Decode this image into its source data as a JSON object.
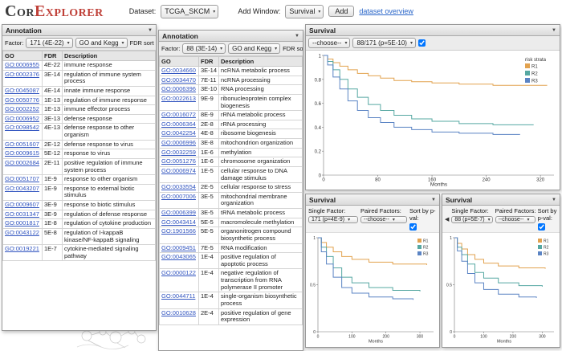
{
  "header": {
    "logo": {
      "cor": "Cor",
      "explorer": "Explorer"
    },
    "dataset_label": "Dataset:",
    "dataset_value": "TCGA_SKCM",
    "add_window_label": "Add Window:",
    "add_window_value": "Survival",
    "add_button_label": "Add",
    "overview_link_label": "dataset overview"
  },
  "annotation_left": {
    "title": "Annotation",
    "factor_label": "Factor:",
    "factor_value": "171 (4E-22)",
    "ontology_value": "GO and Kegg",
    "fdr_sort_label": "FDR sort",
    "fdr_sort_checked": true,
    "columns": [
      "GO",
      "FDR",
      "Description"
    ],
    "rows": [
      [
        "GO:0006955",
        "4E-22",
        "immune response"
      ],
      [
        "GO:0002376",
        "3E-14",
        "regulation of immune system process"
      ],
      [
        "GO:0045087",
        "4E-14",
        "innate immune response"
      ],
      [
        "GO:0050776",
        "1E-13",
        "regulation of immune response"
      ],
      [
        "GO:0002252",
        "1E-13",
        "immune effector process"
      ],
      [
        "GO:0006952",
        "3E-13",
        "defense response"
      ],
      [
        "GO:0098542",
        "4E-13",
        "defense response to other organism"
      ],
      [
        "GO:0051607",
        "2E-12",
        "defense response to virus"
      ],
      [
        "GO:0009615",
        "5E-12",
        "response to virus"
      ],
      [
        "GO:0002684",
        "2E-11",
        "positive regulation of immune system process"
      ],
      [
        "GO:0051707",
        "1E-9",
        "response to other organism"
      ],
      [
        "GO:0043207",
        "1E-9",
        "response to external biotic stimulus"
      ],
      [
        "GO:0009607",
        "3E-9",
        "response to biotic stimulus"
      ],
      [
        "GO:0031347",
        "3E-9",
        "regulation of defense response"
      ],
      [
        "GO:0001817",
        "1E-8",
        "regulation of cytokine production"
      ],
      [
        "GO:0043122",
        "5E-8",
        "regulation of I-kappaB kinase/NF-kappaB signaling"
      ],
      [
        "GO:0019221",
        "1E-7",
        "cytokine-mediated signaling pathway"
      ]
    ]
  },
  "annotation_mid": {
    "title": "Annotation",
    "factor_label": "Factor:",
    "factor_value": "88 (3E-14)",
    "ontology_value": "GO and Kegg",
    "fdr_sort_label": "FDR sort",
    "fdr_sort_checked": true,
    "columns": [
      "GO",
      "FDR",
      "Description"
    ],
    "rows": [
      [
        "GO:0034660",
        "3E-14",
        "ncRNA metabolic process"
      ],
      [
        "GO:0034470",
        "7E-11",
        "ncRNA processing"
      ],
      [
        "GO:0006396",
        "3E-10",
        "RNA processing"
      ],
      [
        "GO:0022613",
        "9E-9",
        "ribonucleoprotein complex biogenesis"
      ],
      [
        "GO:0016072",
        "8E-9",
        "rRNA metabolic process"
      ],
      [
        "GO:0006364",
        "2E-8",
        "rRNA processing"
      ],
      [
        "GO:0042254",
        "4E-8",
        "ribosome biogenesis"
      ],
      [
        "GO:0006996",
        "3E-8",
        "mitochondrion organization"
      ],
      [
        "GO:0032259",
        "1E-6",
        "methylation"
      ],
      [
        "GO:0051276",
        "1E-6",
        "chromosome organization"
      ],
      [
        "GO:0006974",
        "1E-5",
        "cellular response to DNA damage stimulus"
      ],
      [
        "GO:0033554",
        "2E-5",
        "cellular response to stress"
      ],
      [
        "GO:0007006",
        "3E-5",
        "mitochondrial membrane organization"
      ],
      [
        "GO:0006399",
        "3E-5",
        "tRNA metabolic process"
      ],
      [
        "GO:0043414",
        "5E-5",
        "macromolecule methylation"
      ],
      [
        "GO:1901566",
        "5E-5",
        "organonitrogen compound biosynthetic process"
      ],
      [
        "GO:0009451",
        "7E-5",
        "RNA modification"
      ],
      [
        "GO:0043065",
        "1E-4",
        "positive regulation of apoptotic process"
      ],
      [
        "GO:0000122",
        "1E-4",
        "negative regulation of transcription from RNA polymerase II promoter"
      ],
      [
        "GO:0044711",
        "1E-4",
        "single-organism biosynthetic process"
      ],
      [
        "GO:0010628",
        "2E-4",
        "positive regulation of gene expression"
      ]
    ]
  },
  "survival_main": {
    "title": "Survival",
    "single_value": "--choose--",
    "paired_value": "88/171 (p=5E-10)",
    "sort_checked": true
  },
  "survival_small_left": {
    "title": "Survival",
    "single_label": "Single Factor:",
    "single_value": "171 (p=4E-9)",
    "paired_label": "Paired Factors:",
    "paired_value": "--choose--",
    "sort_label": "Sort by p-val:",
    "sort_checked": true
  },
  "survival_small_right": {
    "title": "Survival",
    "single_label": "Single Factor:",
    "single_value": "88 (p=5E-7)",
    "paired_label": "Paired Factors:",
    "paired_value": "--choose--",
    "sort_label": "Sort by p-val:",
    "sort_checked": true
  },
  "chart_data": [
    {
      "id": "main",
      "type": "line",
      "title": "",
      "xlabel": "Months",
      "ylabel": "",
      "xlim": [
        0,
        340
      ],
      "ylim": [
        0,
        1
      ],
      "x_ticks": [
        0,
        80,
        160,
        240,
        320
      ],
      "y_ticks": [
        0,
        0.2,
        0.4,
        0.6,
        0.8,
        1
      ],
      "legend_title": "risk strata",
      "ml": 22,
      "fs": 6,
      "lw": 36,
      "series": [
        {
          "name": "R1",
          "color": "#e2a24f",
          "points": [
            [
              0,
              1
            ],
            [
              6,
              0.97
            ],
            [
              14,
              0.94
            ],
            [
              24,
              0.91
            ],
            [
              36,
              0.88
            ],
            [
              50,
              0.85
            ],
            [
              66,
              0.83
            ],
            [
              84,
              0.81
            ],
            [
              104,
              0.79
            ],
            [
              130,
              0.78
            ],
            [
              160,
              0.77
            ],
            [
              200,
              0.76
            ],
            [
              250,
              0.75
            ],
            [
              330,
              0.75
            ]
          ]
        },
        {
          "name": "R2",
          "color": "#56a8a2",
          "points": [
            [
              0,
              1
            ],
            [
              6,
              0.95
            ],
            [
              14,
              0.88
            ],
            [
              24,
              0.8
            ],
            [
              36,
              0.72
            ],
            [
              50,
              0.65
            ],
            [
              66,
              0.59
            ],
            [
              84,
              0.54
            ],
            [
              104,
              0.5
            ],
            [
              130,
              0.47
            ],
            [
              160,
              0.45
            ],
            [
              200,
              0.43
            ],
            [
              250,
              0.42
            ],
            [
              310,
              0.42
            ]
          ]
        },
        {
          "name": "R3",
          "color": "#5b84c4",
          "points": [
            [
              0,
              1
            ],
            [
              6,
              0.92
            ],
            [
              14,
              0.82
            ],
            [
              24,
              0.72
            ],
            [
              36,
              0.62
            ],
            [
              50,
              0.54
            ],
            [
              66,
              0.48
            ],
            [
              84,
              0.44
            ],
            [
              104,
              0.4
            ],
            [
              130,
              0.38
            ],
            [
              160,
              0.36
            ],
            [
              200,
              0.35
            ],
            [
              250,
              0.34
            ],
            [
              290,
              0.34
            ]
          ]
        }
      ]
    },
    {
      "id": "small_left",
      "type": "line",
      "xlabel": "Months",
      "xlim": [
        0,
        340
      ],
      "ylim": [
        0,
        1
      ],
      "x_ticks": [
        0,
        100,
        200,
        300
      ],
      "y_ticks": [
        0,
        0.5,
        1
      ],
      "ml": 15,
      "fs": 5,
      "lw": 20,
      "series": [
        {
          "name": "R1",
          "color": "#e2a24f",
          "points": [
            [
              0,
              1
            ],
            [
              10,
              0.95
            ],
            [
              25,
              0.9
            ],
            [
              45,
              0.85
            ],
            [
              70,
              0.8
            ],
            [
              100,
              0.77
            ],
            [
              150,
              0.74
            ],
            [
              220,
              0.72
            ],
            [
              320,
              0.71
            ]
          ]
        },
        {
          "name": "R2",
          "color": "#56a8a2",
          "points": [
            [
              0,
              1
            ],
            [
              10,
              0.9
            ],
            [
              25,
              0.8
            ],
            [
              45,
              0.68
            ],
            [
              70,
              0.58
            ],
            [
              100,
              0.52
            ],
            [
              150,
              0.47
            ],
            [
              220,
              0.44
            ],
            [
              300,
              0.43
            ]
          ]
        },
        {
          "name": "R3",
          "color": "#5b84c4",
          "points": [
            [
              0,
              1
            ],
            [
              10,
              0.85
            ],
            [
              25,
              0.72
            ],
            [
              45,
              0.58
            ],
            [
              70,
              0.47
            ],
            [
              100,
              0.41
            ],
            [
              150,
              0.37
            ],
            [
              220,
              0.35
            ],
            [
              280,
              0.34
            ]
          ]
        }
      ]
    },
    {
      "id": "small_right",
      "type": "line",
      "xlabel": "Months",
      "xlim": [
        0,
        340
      ],
      "ylim": [
        0,
        1
      ],
      "x_ticks": [
        0,
        100,
        200,
        300
      ],
      "y_ticks": [
        0,
        0.5,
        1
      ],
      "ml": 15,
      "fs": 5,
      "lw": 20,
      "series": [
        {
          "name": "R1",
          "color": "#e2a24f",
          "points": [
            [
              0,
              1
            ],
            [
              10,
              0.94
            ],
            [
              25,
              0.88
            ],
            [
              45,
              0.82
            ],
            [
              70,
              0.77
            ],
            [
              100,
              0.73
            ],
            [
              150,
              0.7
            ],
            [
              220,
              0.68
            ],
            [
              310,
              0.67
            ]
          ]
        },
        {
          "name": "R2",
          "color": "#56a8a2",
          "points": [
            [
              0,
              1
            ],
            [
              10,
              0.9
            ],
            [
              25,
              0.82
            ],
            [
              45,
              0.72
            ],
            [
              70,
              0.63
            ],
            [
              100,
              0.57
            ],
            [
              150,
              0.52
            ],
            [
              220,
              0.49
            ],
            [
              300,
              0.48
            ]
          ]
        },
        {
          "name": "R3",
          "color": "#5b84c4",
          "points": [
            [
              0,
              1
            ],
            [
              10,
              0.86
            ],
            [
              25,
              0.75
            ],
            [
              45,
              0.62
            ],
            [
              70,
              0.52
            ],
            [
              100,
              0.45
            ],
            [
              150,
              0.4
            ],
            [
              220,
              0.37
            ],
            [
              280,
              0.36
            ]
          ]
        }
      ]
    }
  ]
}
